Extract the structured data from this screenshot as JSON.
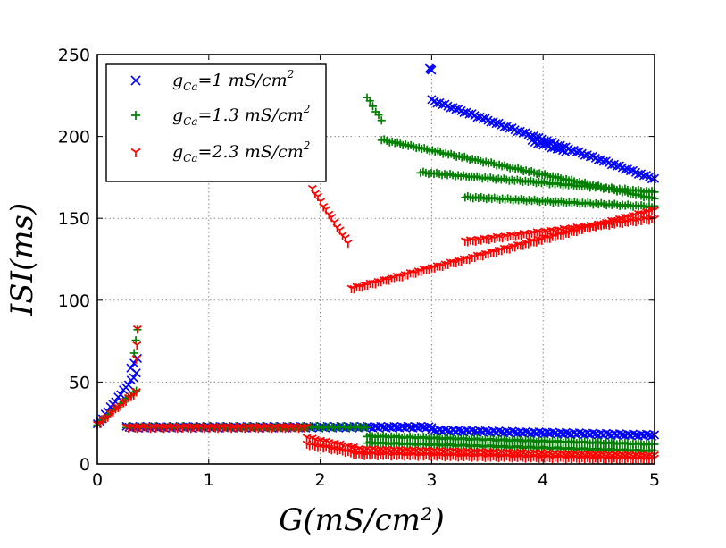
{
  "chart_data": {
    "type": "scatter",
    "title": "",
    "xlabel": "G(mS/cm²)",
    "ylabel": "ISI(ms)",
    "xlim": [
      0,
      5
    ],
    "ylim": [
      0,
      250
    ],
    "xticks": [
      "0",
      "1",
      "2",
      "3",
      "4",
      "5"
    ],
    "yticks": [
      "0",
      "50",
      "100",
      "150",
      "200",
      "250"
    ],
    "grid": true,
    "legend_position": "top-left",
    "legend": [
      {
        "symbol": "×",
        "main": "g",
        "sub": "Ca",
        "value": "=1 mS/cm",
        "sup": "2"
      },
      {
        "symbol": "+",
        "main": "g",
        "sub": "Ca",
        "value": "=1.3 mS/cm",
        "sup": "2"
      },
      {
        "symbol": "Y",
        "main": "g",
        "sub": "Ca",
        "value": "=2.3 mS/cm",
        "sup": "2"
      }
    ],
    "series": [
      {
        "name": "gCa=1 mS/cm2",
        "marker": "x",
        "color": "#0000ff",
        "segments": [
          {
            "x": [
              0,
              0.35
            ],
            "y": [
              24,
              55
            ]
          },
          {
            "x": [
              0.3,
              0.36
            ],
            "y": [
              58,
              65
            ]
          },
          {
            "x": [
              0.26,
              3.0
            ],
            "y": [
              22.5,
              22.5
            ]
          },
          {
            "x": [
              3.0,
              5.0
            ],
            "y": [
              20.5,
              17.5
            ]
          },
          {
            "x": [
              2.98,
              3.0
            ],
            "y": [
              241,
              241
            ]
          },
          {
            "x": [
              3.0,
              5.0
            ],
            "y": [
              222,
              174
            ]
          },
          {
            "x": [
              3.9,
              4.2
            ],
            "y": [
              197,
              191
            ]
          }
        ]
      },
      {
        "name": "gCa=1.3 mS/cm2",
        "marker": "+",
        "color": "#008000",
        "segments": [
          {
            "x": [
              0,
              0.35
            ],
            "y": [
              24,
              45
            ]
          },
          {
            "x": [
              0.33,
              0.36
            ],
            "y": [
              68,
              82
            ]
          },
          {
            "x": [
              0.26,
              2.42
            ],
            "y": [
              22.5,
              22.5
            ]
          },
          {
            "x": [
              2.42,
              5.0
            ],
            "y": [
              17,
              12
            ]
          },
          {
            "x": [
              2.42,
              5.0
            ],
            "y": [
              13,
              8
            ]
          },
          {
            "x": [
              2.42,
              2.55
            ],
            "y": [
              224,
              210
            ]
          },
          {
            "x": [
              2.55,
              5.0
            ],
            "y": [
              198,
              162
            ]
          },
          {
            "x": [
              2.9,
              5.0
            ],
            "y": [
              178,
              166
            ]
          },
          {
            "x": [
              3.3,
              5.0
            ],
            "y": [
              163,
              157
            ]
          }
        ]
      },
      {
        "name": "gCa=2.3 mS/cm2",
        "marker": "tri_down",
        "color": "#ff0000",
        "segments": [
          {
            "x": [
              0,
              0.35
            ],
            "y": [
              24,
              44
            ]
          },
          {
            "x": [
              0.35,
              0.36
            ],
            "y": [
              64,
              82
            ]
          },
          {
            "x": [
              0.26,
              1.88
            ],
            "y": [
              22.5,
              22.5
            ]
          },
          {
            "x": [
              1.88,
              2.3
            ],
            "y": [
              16,
              10
            ]
          },
          {
            "x": [
              1.88,
              2.3
            ],
            "y": [
              12,
              7
            ]
          },
          {
            "x": [
              2.3,
              5.0
            ],
            "y": [
              9,
              5
            ]
          },
          {
            "x": [
              2.3,
              5.0
            ],
            "y": [
              6,
              3
            ]
          },
          {
            "x": [
              1.93,
              2.25
            ],
            "y": [
              168,
              135
            ]
          },
          {
            "x": [
              2.28,
              5.0
            ],
            "y": [
              107,
              155
            ]
          },
          {
            "x": [
              3.3,
              5.0
            ],
            "y": [
              136,
              150
            ]
          }
        ]
      }
    ]
  }
}
